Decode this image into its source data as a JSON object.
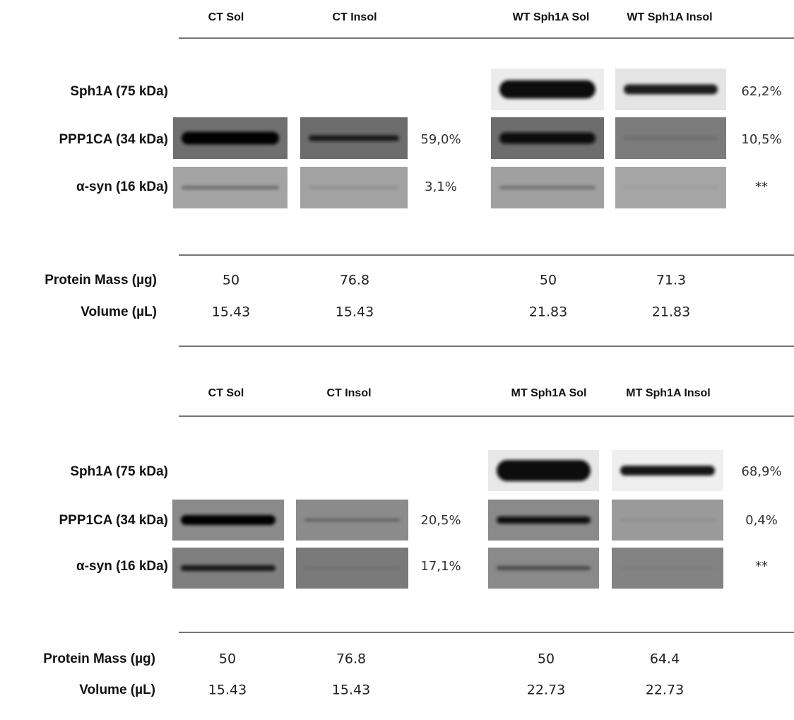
{
  "panels": [
    {
      "columns": [
        "CT  Sol",
        "CT Insol",
        "WT Sph1A Sol",
        "WT Sph1A Insol"
      ],
      "rows": [
        {
          "label": "Sph1A (75 kDa)",
          "right_value": "62,2%"
        },
        {
          "label": "PPP1CA (34 kDa)",
          "left_value": "59,0%",
          "right_value": "10,5%"
        },
        {
          "label": "α-syn (16 kDa)",
          "left_value": "3,1%",
          "right_value": "**"
        }
      ],
      "measurements": [
        {
          "label": "Protein Mass (µg)",
          "values": [
            50,
            76.8,
            50,
            71.3
          ]
        },
        {
          "label": "Volume (µL)",
          "values": [
            15.43,
            15.43,
            21.83,
            21.83
          ]
        }
      ]
    },
    {
      "columns": [
        "CT  Sol",
        "CT Insol",
        "MT Sph1A Sol",
        "MT Sph1A Insol"
      ],
      "rows": [
        {
          "label": "Sph1A (75 kDa)",
          "right_value": "68,9%"
        },
        {
          "label": "PPP1CA (34 kDa)",
          "left_value": "20,5%",
          "right_value": "0,4%"
        },
        {
          "label": "α-syn (16 kDa)",
          "left_value": "17,1%",
          "right_value": "**"
        }
      ],
      "measurements": [
        {
          "label": "Protein Mass (µg)",
          "values": [
            50,
            76.8,
            50,
            64.4
          ]
        },
        {
          "label": "Volume (µL)",
          "values": [
            15.43,
            15.43,
            22.73,
            22.73
          ]
        }
      ]
    }
  ]
}
